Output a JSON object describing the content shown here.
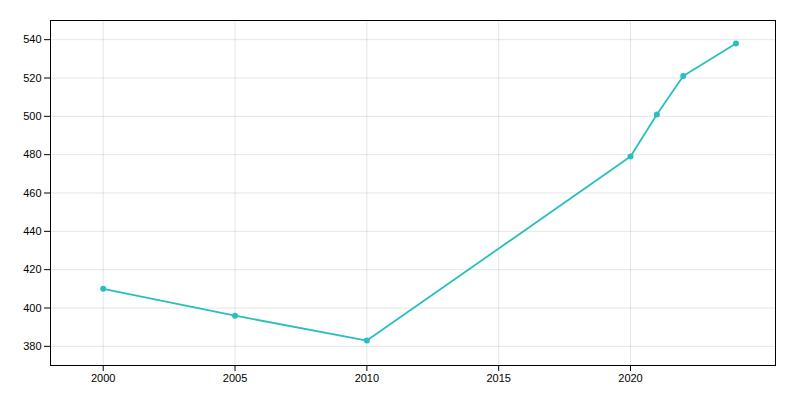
{
  "chart_data": {
    "type": "line",
    "x": [
      2000,
      2005,
      2010,
      2020,
      2021,
      2022,
      2024
    ],
    "values": [
      410,
      396,
      383,
      479,
      501,
      521,
      538
    ],
    "color": "#2ABFBF",
    "marker": "circle",
    "xlim": [
      1998,
      2025.5
    ],
    "ylim": [
      370,
      550
    ],
    "xticks": [
      2000,
      2005,
      2010,
      2015,
      2020
    ],
    "yticks": [
      380,
      400,
      420,
      440,
      460,
      480,
      500,
      520,
      540
    ],
    "grid": true
  }
}
